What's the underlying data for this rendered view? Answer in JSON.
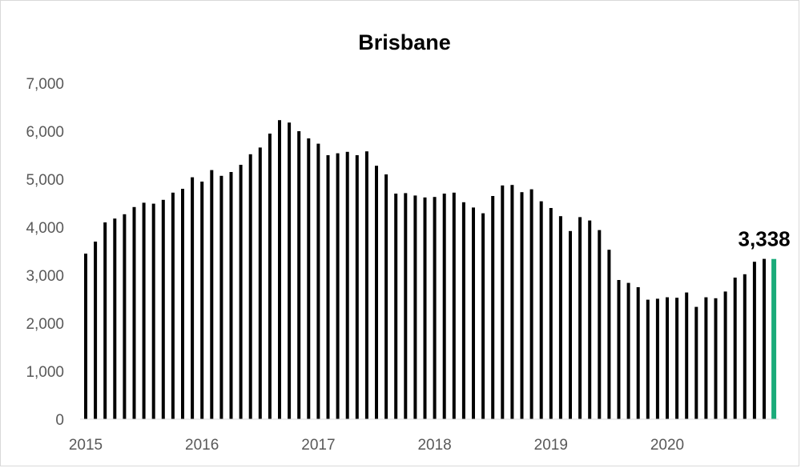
{
  "chart_data": {
    "type": "bar",
    "title": "Brisbane",
    "xlabel": "",
    "ylabel": "",
    "ylim": [
      0,
      7000
    ],
    "y_ticks": [
      "0",
      "1,000",
      "2,000",
      "3,000",
      "4,000",
      "5,000",
      "6,000",
      "7,000"
    ],
    "x_ticks": [
      "2015",
      "2016",
      "2017",
      "2018",
      "2019",
      "2020"
    ],
    "grid": false,
    "legend": "none",
    "series": [
      {
        "values": [
          3450,
          3700,
          4100,
          4180,
          4270,
          4420,
          4510,
          4490,
          4570,
          4720,
          4800,
          5040,
          4950,
          5190,
          5070,
          5150,
          5300,
          5520,
          5660,
          5950,
          6230,
          6180,
          6000,
          5850,
          5740,
          5500,
          5540,
          5570,
          5500,
          5580,
          5280,
          5100,
          4700,
          4710,
          4660,
          4620,
          4630,
          4700,
          4720,
          4520,
          4410,
          4290,
          4650,
          4870,
          4880,
          4730,
          4790,
          4540,
          4400,
          4230,
          3920,
          4210,
          4140,
          3940,
          3530,
          2900,
          2840,
          2750,
          2490,
          2510,
          2540,
          2530,
          2640,
          2340,
          2540,
          2520,
          2660,
          2950,
          3020,
          3280,
          3340,
          3338
        ]
      }
    ],
    "highlight": {
      "index": 71,
      "label": "3,338",
      "color": "#1aab7a"
    },
    "bar_color": "#000000"
  }
}
